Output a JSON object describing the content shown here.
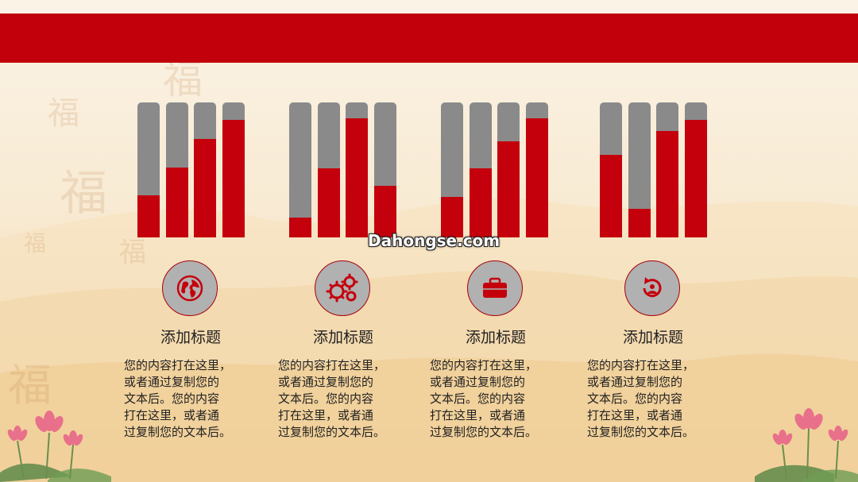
{
  "watermark": "Dahongse.com",
  "colors": {
    "band": "#c1000b",
    "bar_fill": "#c4000d",
    "bar_track": "#8a8a8a",
    "icon_bg": "#b1b1b1"
  },
  "sections": [
    {
      "icon": "globe-icon",
      "title": "添加标题",
      "body": [
        "您的内容打在这里，",
        "或者通过复制您的",
        "文本后。您的内容",
        "打在这里，或者通",
        "过复制您的文本后。"
      ],
      "levels": [
        0.31,
        0.52,
        0.73,
        0.87
      ]
    },
    {
      "icon": "gears-icon",
      "title": "添加标题",
      "body": [
        "您的内容打在这里，",
        "或者通过复制您的",
        "文本后。您的内容",
        "打在这里，或者通",
        "过复制您的文本后。"
      ],
      "levels": [
        0.15,
        0.51,
        0.88,
        0.38
      ]
    },
    {
      "icon": "briefcase-icon",
      "title": "添加标题",
      "body": [
        "您的内容打在这里，",
        "或者通过复制您的",
        "文本后。您的内容",
        "打在这里，或者通",
        "过复制您的文本后。"
      ],
      "levels": [
        0.3,
        0.51,
        0.71,
        0.88
      ]
    },
    {
      "icon": "refresh-user-icon",
      "title": "添加标题",
      "body": [
        "您的内容打在这里，",
        "或者通过复制您的",
        "文本后。您的内容",
        "打在这里，或者通",
        "过复制您的文本后。"
      ],
      "levels": [
        0.61,
        0.21,
        0.79,
        0.87
      ]
    }
  ]
}
